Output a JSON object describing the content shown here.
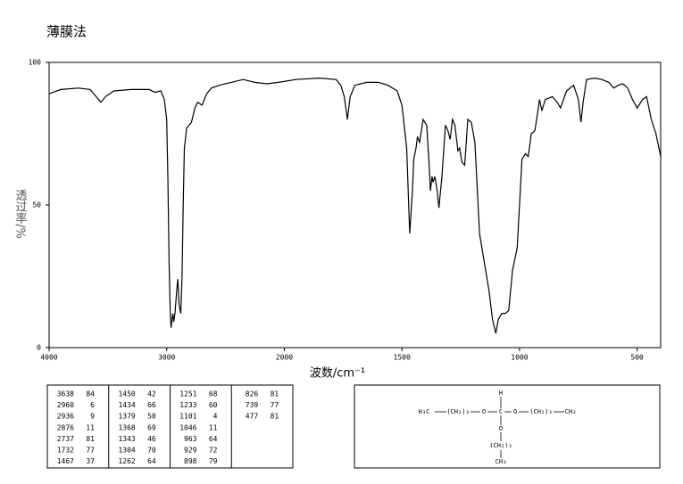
{
  "chart_data": {
    "type": "line",
    "title": "薄膜法",
    "x_label": "波数/cm⁻¹",
    "y_label": "透过率/%",
    "color": "#000000",
    "xlim": [
      4000,
      400
    ],
    "ylim": [
      0,
      100
    ],
    "xticks": [
      4000,
      3000,
      2000,
      1500,
      1000,
      500
    ],
    "yticks": [
      0,
      50,
      100
    ],
    "x": [
      4000,
      3900,
      3750,
      3650,
      3600,
      3560,
      3520,
      3450,
      3300,
      3150,
      3100,
      3050,
      3020,
      3000,
      2990,
      2980,
      2970,
      2962,
      2955,
      2948,
      2940,
      2930,
      2915,
      2905,
      2895,
      2880,
      2870,
      2860,
      2850,
      2830,
      2790,
      2760,
      2737,
      2700,
      2660,
      2620,
      2550,
      2450,
      2350,
      2250,
      2150,
      2050,
      1950,
      1850,
      1780,
      1760,
      1745,
      1732,
      1720,
      1700,
      1650,
      1600,
      1560,
      1520,
      1500,
      1480,
      1467,
      1455,
      1450,
      1440,
      1434,
      1425,
      1410,
      1395,
      1385,
      1379,
      1372,
      1368,
      1360,
      1350,
      1343,
      1330,
      1315,
      1304,
      1295,
      1285,
      1275,
      1262,
      1255,
      1245,
      1233,
      1220,
      1205,
      1190,
      1170,
      1150,
      1130,
      1115,
      1101,
      1090,
      1075,
      1060,
      1046,
      1030,
      1010,
      1000,
      990,
      975,
      963,
      950,
      935,
      929,
      915,
      905,
      898,
      890,
      860,
      840,
      826,
      800,
      770,
      750,
      739,
      730,
      715,
      680,
      650,
      620,
      600,
      580,
      560,
      540,
      520,
      500,
      477,
      460,
      440,
      420,
      400
    ],
    "values": [
      89,
      90.5,
      91,
      90.5,
      88,
      86,
      88,
      90,
      90.5,
      90.5,
      89.5,
      90,
      87,
      80,
      60,
      30,
      12,
      7,
      10,
      12,
      9,
      12,
      20,
      24,
      15,
      12,
      25,
      50,
      70,
      77,
      79,
      84,
      86,
      85,
      89,
      91,
      92,
      93,
      94,
      93,
      92.5,
      93,
      94,
      94.5,
      94,
      92,
      88,
      80,
      88,
      92,
      93,
      93,
      92,
      90,
      85,
      70,
      40,
      55,
      66,
      70,
      74,
      72,
      80,
      78,
      65,
      55,
      60,
      58,
      60,
      55,
      49,
      60,
      78,
      76,
      73,
      80,
      78,
      69,
      70,
      65,
      64,
      80,
      79,
      72,
      40,
      30,
      20,
      10,
      5,
      10,
      12,
      12,
      13,
      27,
      35,
      50,
      66,
      68,
      67,
      75,
      76,
      79,
      87,
      83,
      85,
      87,
      88,
      86,
      84,
      90,
      92,
      87,
      79,
      86,
      94,
      94.5,
      94,
      93,
      91,
      92,
      92.5,
      91,
      87,
      84,
      87,
      88,
      80,
      75,
      67
    ]
  },
  "peak_table": {
    "columns": [
      [
        [
          3638,
          84
        ],
        [
          2960,
          6
        ],
        [
          2936,
          9
        ],
        [
          2876,
          11
        ],
        [
          2737,
          81
        ],
        [
          1732,
          77
        ],
        [
          1467,
          37
        ]
      ],
      [
        [
          1450,
          42
        ],
        [
          1434,
          66
        ],
        [
          1379,
          50
        ],
        [
          1368,
          69
        ],
        [
          1343,
          46
        ],
        [
          1304,
          70
        ],
        [
          1262,
          64
        ]
      ],
      [
        [
          1251,
          68
        ],
        [
          1233,
          60
        ],
        [
          1101,
          4
        ],
        [
          1046,
          11
        ],
        [
          963,
          64
        ],
        [
          929,
          72
        ],
        [
          898,
          79
        ]
      ],
      [
        [
          826,
          81
        ],
        [
          739,
          77
        ],
        [
          477,
          81
        ]
      ]
    ]
  },
  "structure": {
    "labels": [
      "H₃C",
      "(CH₂)₃",
      "O",
      "C",
      "O",
      "(CH₂)₃",
      "CH₃",
      "H",
      "O",
      "(CH₂)₃",
      "CH₃"
    ]
  }
}
